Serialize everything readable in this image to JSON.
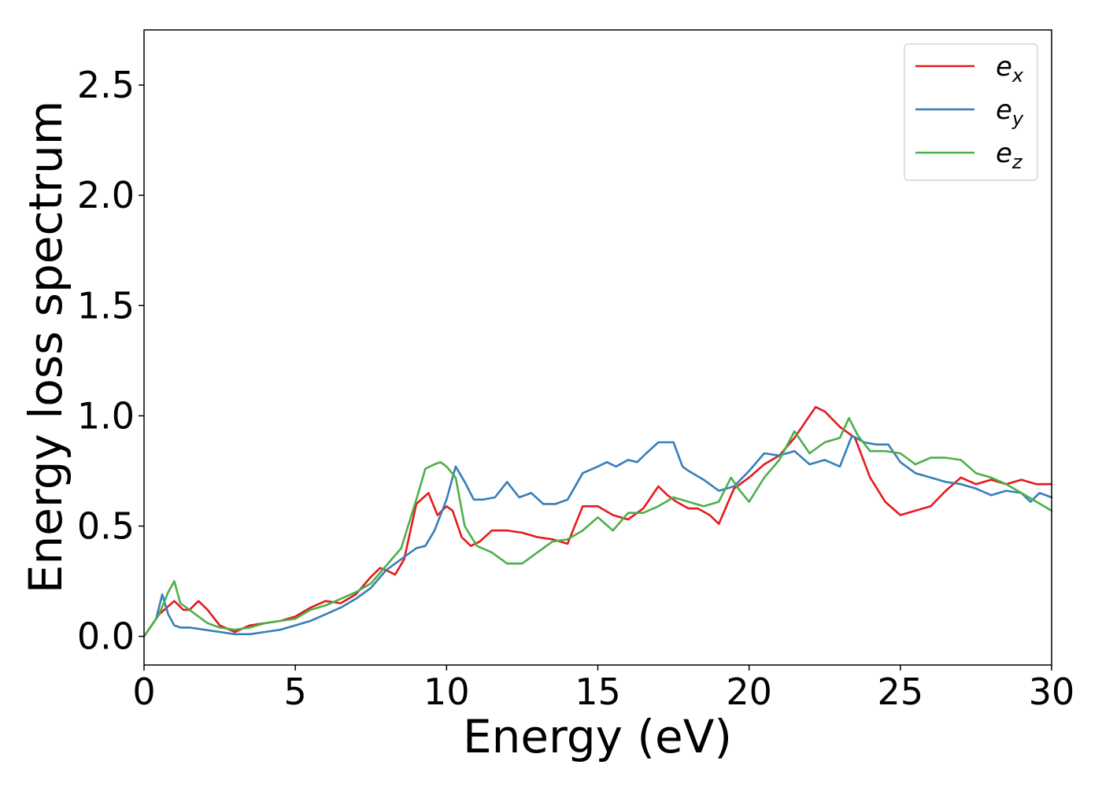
{
  "chart_data": {
    "type": "line",
    "title": "",
    "xlabel": "Energy (eV)",
    "ylabel": "Energy loss spectrum",
    "xlim": [
      0,
      30
    ],
    "ylim": [
      -0.13,
      2.75
    ],
    "xticks": [
      0,
      5,
      10,
      15,
      20,
      25,
      30
    ],
    "xtick_labels": [
      "0",
      "5",
      "10",
      "15",
      "20",
      "25",
      "30"
    ],
    "yticks": [
      0.0,
      0.5,
      1.0,
      1.5,
      2.0,
      2.5
    ],
    "ytick_labels": [
      "0.0",
      "0.5",
      "1.0",
      "1.5",
      "2.0",
      "2.5"
    ],
    "grid": false,
    "legend_position": "top-right",
    "series": [
      {
        "name": "e",
        "subscript": "x",
        "color": "#e41a1c",
        "x": [
          0,
          0.5,
          1.0,
          1.3,
          1.5,
          1.8,
          2.1,
          2.5,
          3.0,
          3.5,
          4.0,
          4.5,
          5.0,
          5.5,
          6.0,
          6.5,
          7.0,
          7.5,
          7.8,
          8.0,
          8.3,
          8.6,
          9.0,
          9.4,
          9.7,
          10.0,
          10.2,
          10.5,
          10.8,
          11.1,
          11.5,
          12.0,
          12.5,
          13.0,
          13.5,
          14.0,
          14.5,
          15.0,
          15.5,
          16.0,
          16.5,
          17.0,
          17.3,
          17.6,
          18.0,
          18.3,
          18.7,
          19.0,
          19.5,
          20.0,
          20.5,
          21.0,
          21.5,
          22.0,
          22.2,
          22.5,
          23.0,
          23.5,
          24.0,
          24.5,
          25.0,
          25.5,
          26.0,
          26.5,
          27.0,
          27.5,
          28.0,
          28.5,
          29.0,
          29.5,
          30.0
        ],
        "values": [
          0.0,
          0.1,
          0.16,
          0.12,
          0.12,
          0.16,
          0.12,
          0.05,
          0.02,
          0.05,
          0.06,
          0.07,
          0.09,
          0.13,
          0.16,
          0.15,
          0.19,
          0.27,
          0.31,
          0.3,
          0.28,
          0.35,
          0.6,
          0.65,
          0.55,
          0.59,
          0.57,
          0.45,
          0.41,
          0.43,
          0.48,
          0.48,
          0.47,
          0.45,
          0.44,
          0.42,
          0.59,
          0.59,
          0.55,
          0.53,
          0.58,
          0.68,
          0.64,
          0.61,
          0.58,
          0.58,
          0.55,
          0.51,
          0.67,
          0.72,
          0.78,
          0.82,
          0.9,
          1.0,
          1.04,
          1.02,
          0.95,
          0.9,
          0.72,
          0.61,
          0.55,
          0.57,
          0.59,
          0.66,
          0.72,
          0.69,
          0.71,
          0.69,
          0.71,
          0.69,
          0.69
        ]
      },
      {
        "name": "e",
        "subscript": "y",
        "color": "#377eb8",
        "x": [
          0,
          0.4,
          0.6,
          0.8,
          1.0,
          1.2,
          1.5,
          2.0,
          2.5,
          3.0,
          3.5,
          4.0,
          4.5,
          5.0,
          5.5,
          6.0,
          6.5,
          7.0,
          7.5,
          8.0,
          8.5,
          9.0,
          9.3,
          9.6,
          10.0,
          10.3,
          10.6,
          10.9,
          11.2,
          11.6,
          12.0,
          12.4,
          12.8,
          13.2,
          13.6,
          14.0,
          14.5,
          15.0,
          15.3,
          15.6,
          16.0,
          16.3,
          16.6,
          17.0,
          17.3,
          17.5,
          17.8,
          18.0,
          18.5,
          19.0,
          19.5,
          20.0,
          20.5,
          21.0,
          21.5,
          22.0,
          22.5,
          23.0,
          23.4,
          23.8,
          24.2,
          24.6,
          25.0,
          25.5,
          26.0,
          26.5,
          27.0,
          27.5,
          28.0,
          28.5,
          29.0,
          29.3,
          29.6,
          30.0
        ],
        "values": [
          0.0,
          0.08,
          0.19,
          0.1,
          0.05,
          0.04,
          0.04,
          0.03,
          0.02,
          0.01,
          0.01,
          0.02,
          0.03,
          0.05,
          0.07,
          0.1,
          0.13,
          0.17,
          0.22,
          0.3,
          0.35,
          0.4,
          0.41,
          0.48,
          0.62,
          0.77,
          0.7,
          0.62,
          0.62,
          0.63,
          0.7,
          0.63,
          0.65,
          0.6,
          0.6,
          0.62,
          0.74,
          0.77,
          0.79,
          0.77,
          0.8,
          0.79,
          0.83,
          0.88,
          0.88,
          0.88,
          0.77,
          0.75,
          0.71,
          0.66,
          0.68,
          0.75,
          0.83,
          0.82,
          0.84,
          0.78,
          0.8,
          0.77,
          0.91,
          0.88,
          0.87,
          0.87,
          0.79,
          0.74,
          0.72,
          0.7,
          0.69,
          0.67,
          0.64,
          0.66,
          0.65,
          0.61,
          0.65,
          0.63
        ]
      },
      {
        "name": "e",
        "subscript": "z",
        "color": "#4daf4a",
        "x": [
          0,
          0.5,
          0.8,
          1.0,
          1.2,
          1.5,
          1.8,
          2.1,
          2.5,
          3.0,
          3.5,
          4.0,
          4.5,
          5.0,
          5.5,
          6.0,
          6.5,
          7.0,
          7.5,
          8.0,
          8.5,
          9.0,
          9.3,
          9.6,
          9.8,
          10.0,
          10.3,
          10.6,
          11.0,
          11.5,
          12.0,
          12.5,
          13.0,
          13.5,
          14.0,
          14.5,
          15.0,
          15.5,
          16.0,
          16.5,
          17.0,
          17.5,
          18.0,
          18.5,
          19.0,
          19.4,
          19.7,
          20.0,
          20.5,
          21.0,
          21.5,
          22.0,
          22.5,
          23.0,
          23.3,
          23.6,
          24.0,
          24.5,
          25.0,
          25.5,
          26.0,
          26.5,
          27.0,
          27.5,
          28.0,
          28.5,
          29.0,
          29.5,
          30.0
        ],
        "values": [
          0.0,
          0.1,
          0.2,
          0.25,
          0.15,
          0.12,
          0.09,
          0.06,
          0.04,
          0.03,
          0.04,
          0.06,
          0.07,
          0.08,
          0.12,
          0.14,
          0.17,
          0.2,
          0.24,
          0.32,
          0.4,
          0.62,
          0.76,
          0.78,
          0.79,
          0.77,
          0.72,
          0.5,
          0.41,
          0.38,
          0.33,
          0.33,
          0.38,
          0.43,
          0.44,
          0.48,
          0.54,
          0.48,
          0.56,
          0.56,
          0.59,
          0.63,
          0.61,
          0.59,
          0.61,
          0.72,
          0.66,
          0.61,
          0.72,
          0.8,
          0.93,
          0.83,
          0.88,
          0.9,
          0.99,
          0.91,
          0.84,
          0.84,
          0.83,
          0.78,
          0.81,
          0.81,
          0.8,
          0.74,
          0.72,
          0.69,
          0.65,
          0.61,
          0.57
        ]
      }
    ]
  }
}
